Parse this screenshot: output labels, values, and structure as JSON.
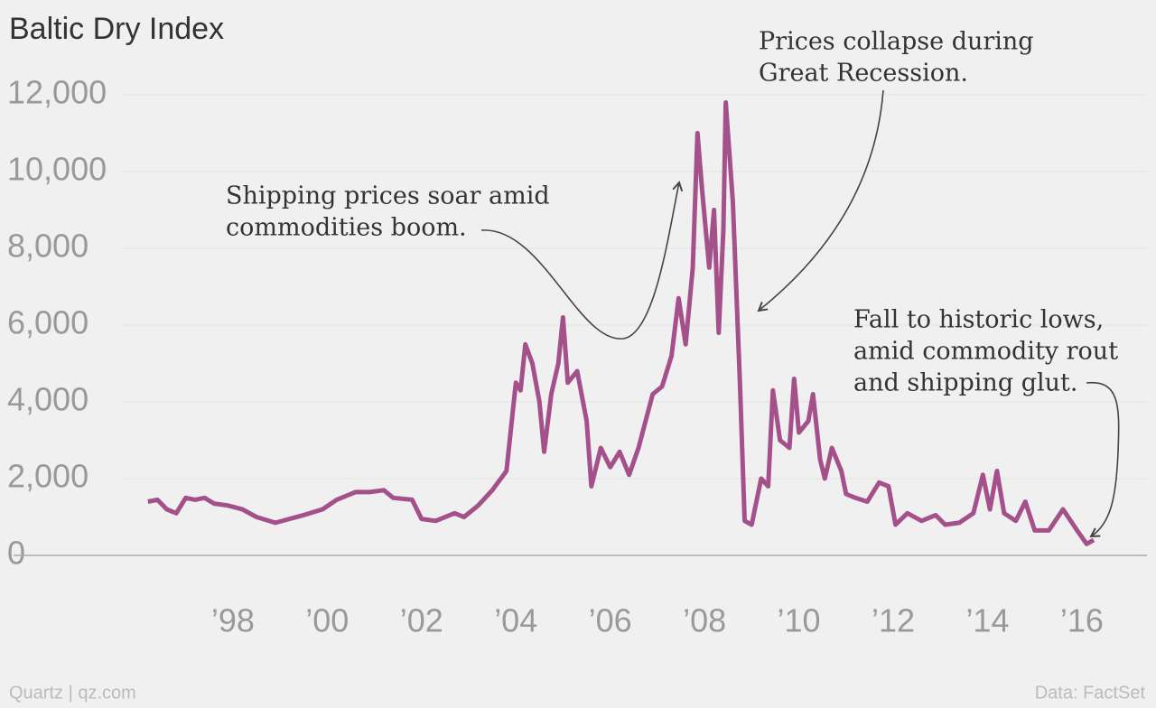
{
  "chart_data": {
    "type": "line",
    "title": "Baltic Dry Index",
    "x": [
      1996.2,
      1996.4,
      1996.6,
      1996.8,
      1997.0,
      1997.2,
      1997.4,
      1997.6,
      1997.9,
      1998.2,
      1998.5,
      1998.9,
      1999.2,
      1999.5,
      1999.9,
      2000.2,
      2000.6,
      2000.9,
      2001.2,
      2001.4,
      2001.8,
      2002.0,
      2002.3,
      2002.7,
      2002.9,
      2003.2,
      2003.5,
      2003.8,
      2004.0,
      2004.1,
      2004.2,
      2004.35,
      2004.5,
      2004.6,
      2004.75,
      2004.9,
      2005.0,
      2005.1,
      2005.3,
      2005.5,
      2005.6,
      2005.8,
      2006.0,
      2006.2,
      2006.4,
      2006.6,
      2006.9,
      2007.1,
      2007.3,
      2007.45,
      2007.6,
      2007.75,
      2007.85,
      2007.95,
      2008.1,
      2008.2,
      2008.3,
      2008.4,
      2008.45,
      2008.6,
      2008.75,
      2008.85,
      2009.0,
      2009.2,
      2009.35,
      2009.45,
      2009.6,
      2009.8,
      2009.9,
      2010.0,
      2010.2,
      2010.3,
      2010.45,
      2010.55,
      2010.7,
      2010.9,
      2011.0,
      2011.2,
      2011.45,
      2011.7,
      2011.9,
      2012.05,
      2012.3,
      2012.6,
      2012.9,
      2013.1,
      2013.4,
      2013.7,
      2013.9,
      2014.05,
      2014.2,
      2014.35,
      2014.6,
      2014.8,
      2015.0,
      2015.3,
      2015.6,
      2015.9,
      2016.1,
      2016.25
    ],
    "series": [
      {
        "name": "Baltic Dry Index",
        "color": "#a4508a",
        "values": [
          1400,
          1450,
          1200,
          1100,
          1500,
          1450,
          1500,
          1350,
          1300,
          1200,
          1000,
          850,
          950,
          1050,
          1200,
          1450,
          1650,
          1650,
          1700,
          1500,
          1450,
          950,
          900,
          1100,
          1000,
          1300,
          1700,
          2200,
          4500,
          4300,
          5500,
          5000,
          4000,
          2700,
          4200,
          5000,
          6200,
          4500,
          4800,
          3500,
          1800,
          2800,
          2300,
          2700,
          2100,
          2800,
          4200,
          4400,
          5200,
          6700,
          5500,
          7500,
          11000,
          9500,
          7500,
          9000,
          5800,
          8500,
          11800,
          9200,
          4500,
          900,
          800,
          2000,
          1800,
          4300,
          3000,
          2800,
          4600,
          3200,
          3500,
          4200,
          2500,
          2000,
          2800,
          2200,
          1600,
          1500,
          1400,
          1900,
          1800,
          800,
          1100,
          900,
          1050,
          800,
          850,
          1100,
          2100,
          1200,
          2200,
          1100,
          900,
          1400,
          650,
          650,
          1200,
          650,
          300,
          400
        ]
      }
    ],
    "xlim": [
      1993.35,
      2017.38
    ],
    "xticks": [
      {
        "value": 1998,
        "label": "’98"
      },
      {
        "value": 2000,
        "label": "’00"
      },
      {
        "value": 2002,
        "label": "’02"
      },
      {
        "value": 2004,
        "label": "’04"
      },
      {
        "value": 2006,
        "label": "’06"
      },
      {
        "value": 2008,
        "label": "’08"
      },
      {
        "value": 2010,
        "label": "’10"
      },
      {
        "value": 2012,
        "label": "’12"
      },
      {
        "value": 2014,
        "label": "’14"
      },
      {
        "value": 2016,
        "label": "’16"
      }
    ],
    "ylim": [
      0,
      12000
    ],
    "yticks": [
      0,
      {
        "value": 2000,
        "label": "2,000"
      },
      {
        "value": 4000,
        "label": "4,000"
      },
      {
        "value": 6000,
        "label": "6,000"
      },
      {
        "value": 8000,
        "label": "8,000"
      },
      {
        "value": 10000,
        "label": "10,000"
      },
      {
        "value": 12000,
        "label": "12,000"
      }
    ],
    "grid": true,
    "annotations": [
      [
        "Shipping prices soar amid",
        "commodities boom."
      ],
      [
        "Prices collapse during",
        "Great Recession."
      ],
      [
        "Fall to historic lows,",
        "amid commodity rout",
        "and shipping glut."
      ]
    ],
    "source_left": "Quartz | qz.com",
    "source_right": "Data: FactSet"
  }
}
